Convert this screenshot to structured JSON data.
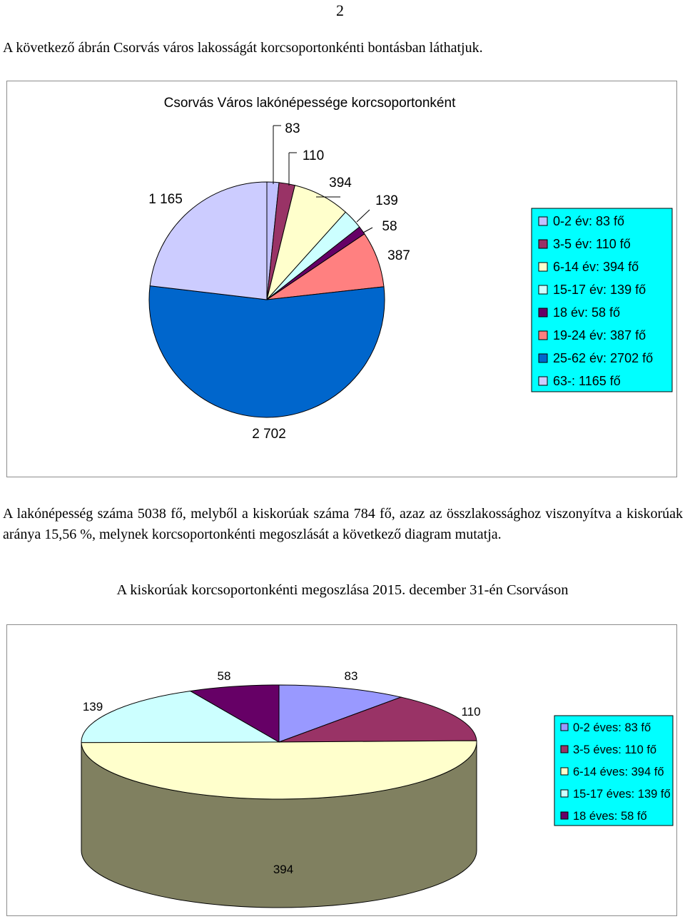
{
  "page": {
    "number": "2",
    "intro": "A következő ábrán Csorvás város lakosságát korcsoportonkénti bontásban láthatjuk.",
    "paragraph": "A lakónépesség száma 5038 fő, melyből a kiskorúak száma 784 fő, azaz az összlakossághoz viszonyítva a kiskorúak aránya 15,56 %, melynek korcsoportonkénti megoszlását a következő diagram mutatja.",
    "caption2": "A kiskorúak korcsoportonkénti megoszlása 2015. december 31-én Csorváson"
  },
  "chart_data": [
    {
      "type": "pie",
      "title": "Csorvás Város lakónépessége korcsoportonként",
      "legend_position": "right",
      "legend_background": "#00ffff",
      "slices": [
        {
          "category": "0-2 év",
          "value": 83,
          "data_label": "83",
          "legend": "0-2 év: 83 fő",
          "color": "#c0c0ff"
        },
        {
          "category": "3-5 év",
          "value": 110,
          "data_label": "110",
          "legend": "3-5 év: 110 fő",
          "color": "#993366"
        },
        {
          "category": "6-14 év",
          "value": 394,
          "data_label": "394",
          "legend": "6-14 év: 394 fő",
          "color": "#ffffcc"
        },
        {
          "category": "15-17 év",
          "value": 139,
          "data_label": "139",
          "legend": "15-17 év: 139 fő",
          "color": "#ccffff"
        },
        {
          "category": "18 év",
          "value": 58,
          "data_label": "58",
          "legend": "18 év: 58 fő",
          "color": "#660066"
        },
        {
          "category": "19-24 év",
          "value": 387,
          "data_label": "387",
          "legend": "19-24 év: 387 fő",
          "color": "#ff8080"
        },
        {
          "category": "25-62 év",
          "value": 2702,
          "data_label": "2 702",
          "legend": "25-62 év: 2702 fő",
          "color": "#0066cc"
        },
        {
          "category": "63-",
          "value": 1165,
          "data_label": "1 165",
          "legend": "63-: 1165 fő",
          "color": "#ccccff"
        }
      ]
    },
    {
      "type": "pie",
      "variant": "3d",
      "title": "",
      "legend_position": "right",
      "legend_background": "#00ffff",
      "side_color": "#808060",
      "slices": [
        {
          "category": "0-2 éves",
          "value": 83,
          "data_label": "83",
          "legend": "0-2 éves: 83 fő",
          "color": "#9999ff"
        },
        {
          "category": "3-5 éves",
          "value": 110,
          "data_label": "110",
          "legend": "3-5 éves: 110 fő",
          "color": "#993366"
        },
        {
          "category": "6-14 éves",
          "value": 394,
          "data_label": "394",
          "legend": "6-14 éves: 394 fő",
          "color": "#ffffcc"
        },
        {
          "category": "15-17 éves",
          "value": 139,
          "data_label": "139",
          "legend": "15-17 éves: 139 fő",
          "color": "#ccffff"
        },
        {
          "category": "18 éves",
          "value": 58,
          "data_label": "58",
          "legend": "18 éves: 58 fő",
          "color": "#660066"
        }
      ]
    }
  ]
}
